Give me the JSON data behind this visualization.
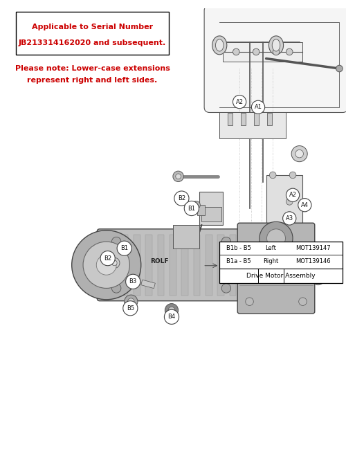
{
  "serial_box_text1": "Applicable to Serial Number",
  "serial_box_text2": "JB213314162020 and subsequent.",
  "note_text1": "Please note: Lower-case extensions",
  "note_text2": "represent right and left sides.",
  "table_title": "Drive Motor Assembly",
  "table_rows": [
    [
      "B1a - B5",
      "Right",
      "MOT139146"
    ],
    [
      "B1b - B5",
      "Left",
      "MOT139147"
    ]
  ],
  "red_color": "#cc0000",
  "black_color": "#000000",
  "dark_gray": "#444444",
  "mid_gray": "#888888",
  "light_gray": "#bbbbbb",
  "very_light_gray": "#dddddd",
  "bg_color": "#ffffff",
  "line_color": "#555555"
}
